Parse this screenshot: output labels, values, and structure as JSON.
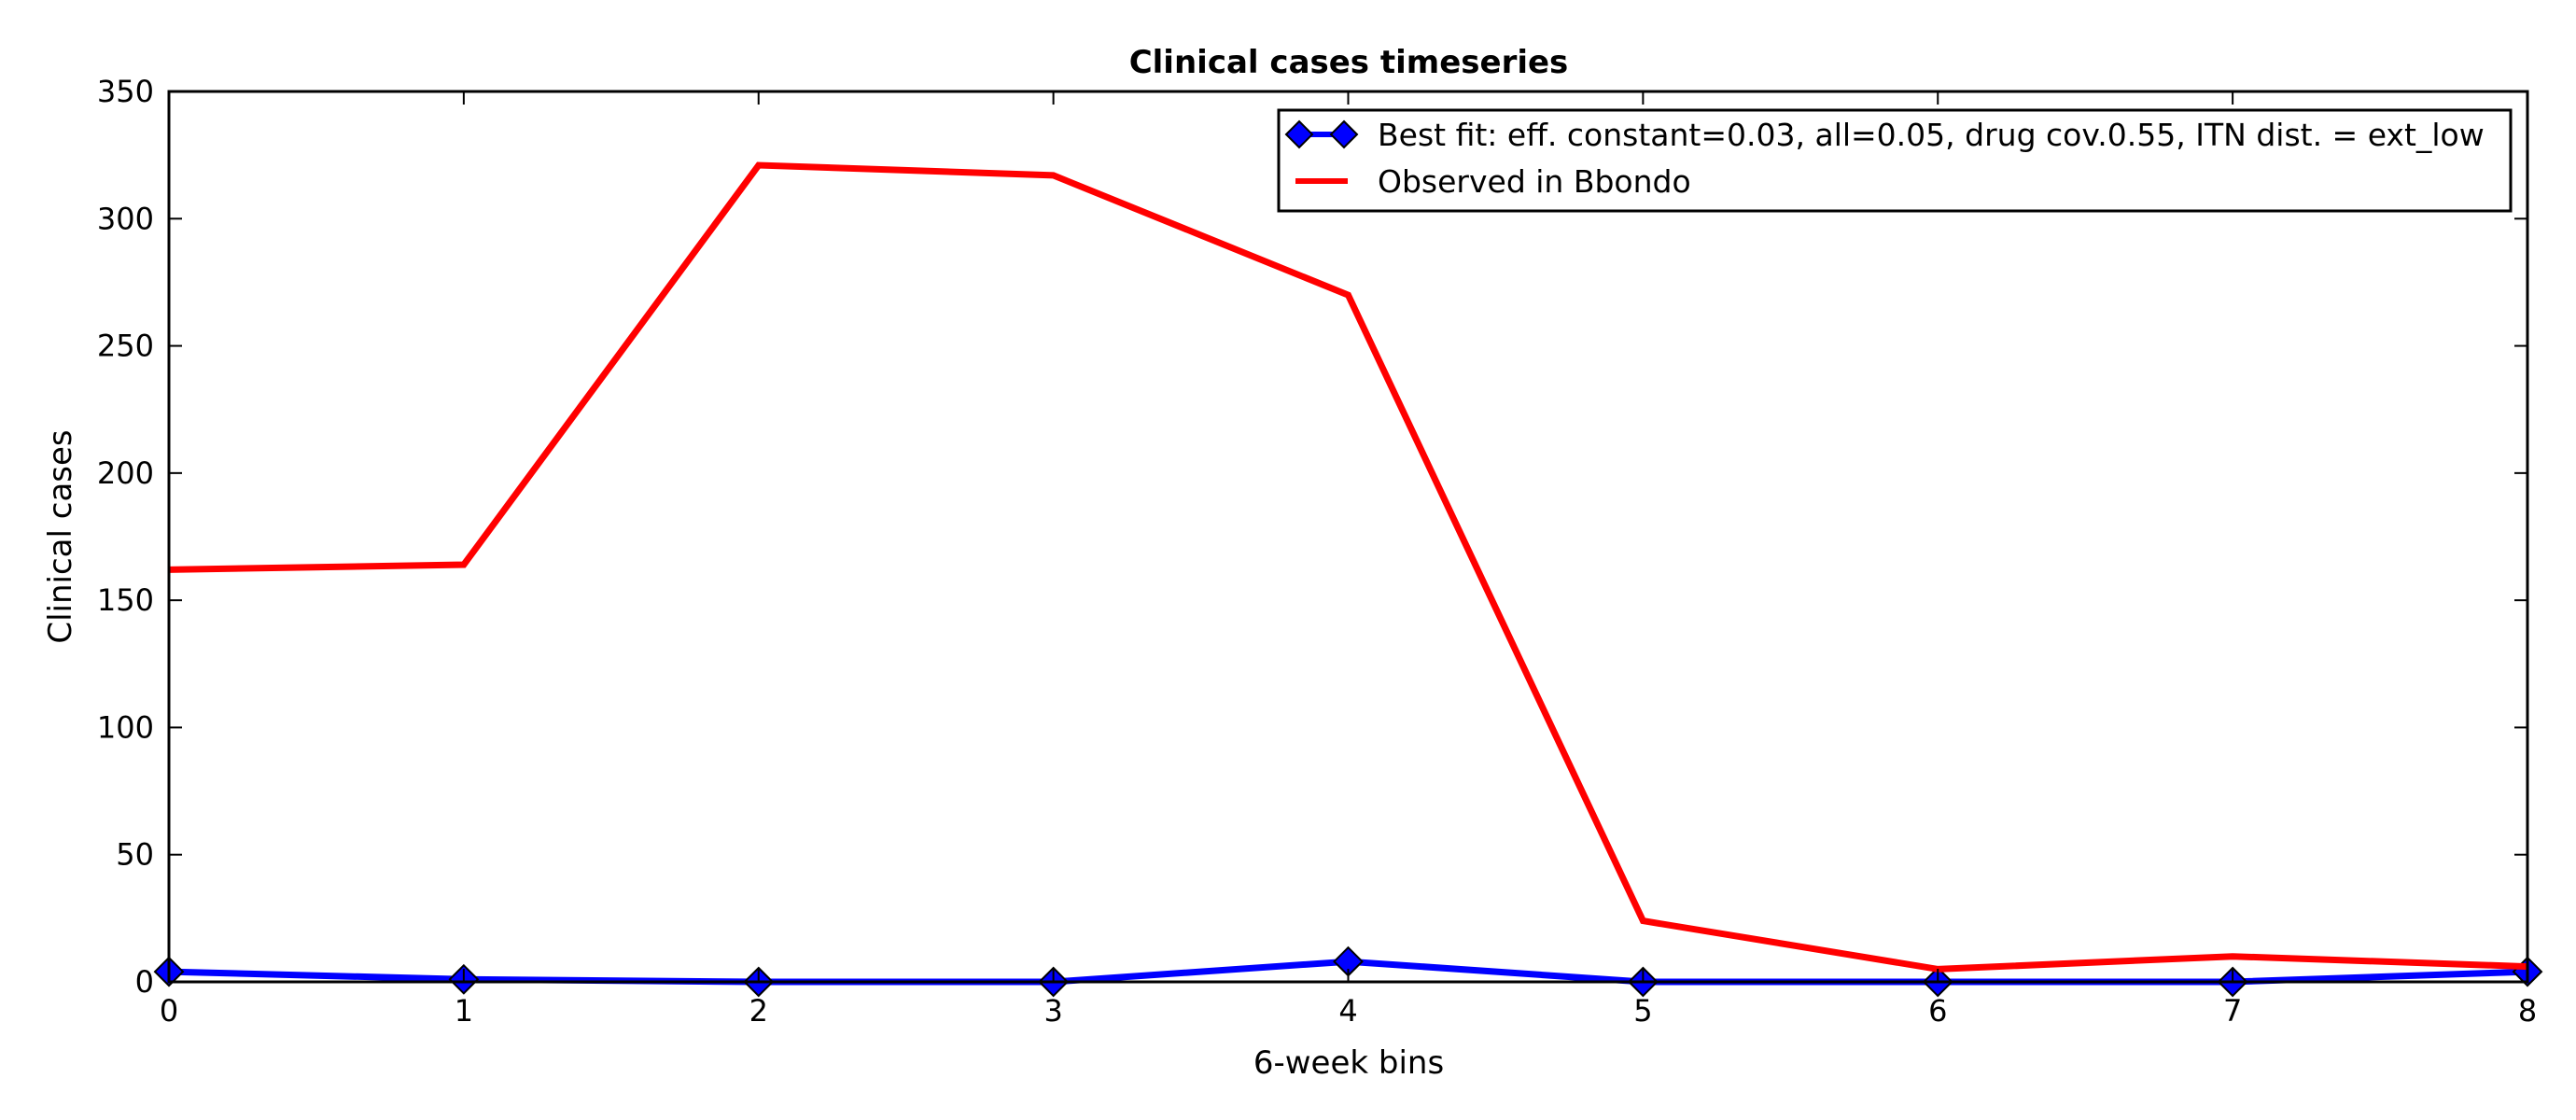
{
  "chart_data": {
    "type": "line",
    "title": "Clinical cases timeseries",
    "xlabel": "6-week bins",
    "ylabel": "Clinical cases",
    "x": [
      0,
      1,
      2,
      3,
      4,
      5,
      6,
      7,
      8
    ],
    "xlim": [
      0,
      8
    ],
    "ylim": [
      0,
      350
    ],
    "xticks": [
      "0",
      "1",
      "2",
      "3",
      "4",
      "5",
      "6",
      "7",
      "8"
    ],
    "yticks": [
      "0",
      "50",
      "100",
      "150",
      "200",
      "250",
      "300",
      "350"
    ],
    "grid": false,
    "legend_position": "top-right",
    "series": [
      {
        "name": "Best fit: eff. constant=0.03, all=0.05, drug cov.0.55, ITN dist. = ext_low",
        "values": [
          4,
          1,
          0,
          0,
          8,
          0,
          0,
          0,
          4
        ],
        "color": "#0000ff",
        "marker": "diamond"
      },
      {
        "name": "Observed in Bbondo",
        "values": [
          162,
          164,
          321,
          317,
          270,
          24,
          5,
          10,
          6
        ],
        "color": "#ff0000",
        "marker": "none"
      }
    ]
  }
}
